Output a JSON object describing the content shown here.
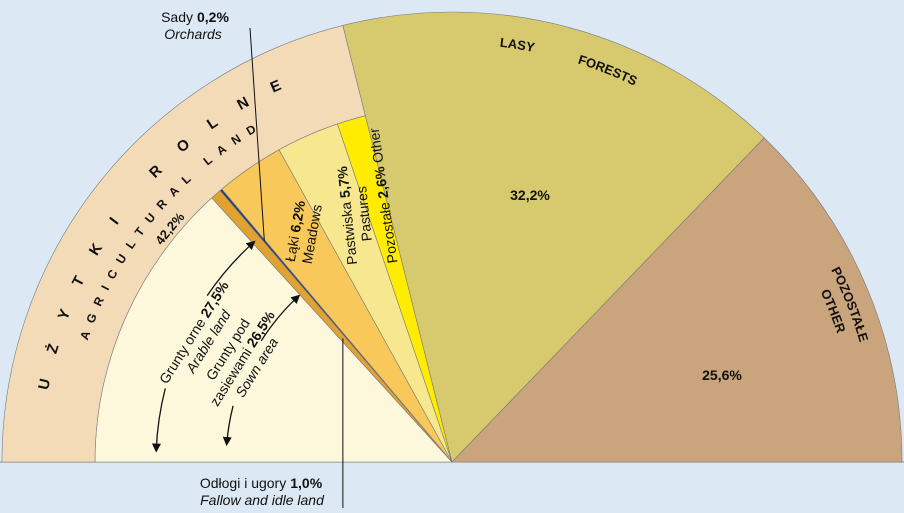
{
  "chart_data": {
    "type": "semi-pie",
    "segments": [
      {
        "name": "UŻYTKI ROLNE",
        "name_en": "AGRICULTURAL LAND",
        "value": 42.2,
        "value_label": "42,2%",
        "color": "#f3dbb8",
        "parts": [
          {
            "name": "Grunty orne",
            "name_en": "Arable land",
            "value": 27.5,
            "value_label": "27,5%",
            "parts": [
              {
                "name": [
                  "Grunty pod",
                  "zasiewami"
                ],
                "name_en": "Sown area",
                "value": 26.5,
                "value_label": "26,5%",
                "color": "#fdf8dc"
              },
              {
                "name": "Odłogi i ugory",
                "name_en": "Fallow and idle land",
                "value": 1.0,
                "value_label": "1,0%",
                "color": "#e3a132"
              }
            ]
          },
          {
            "name": "Sady",
            "name_en": "Orchards",
            "value": 0.2,
            "value_label": "0,2%",
            "color": "#1f3f7a"
          },
          {
            "name": "Łąki",
            "name_en": "Meadows",
            "value": 6.2,
            "value_label": "6,2%",
            "color": "#f8c95a"
          },
          {
            "name": "Pastwiska",
            "name_en": "Pastures",
            "value": 5.7,
            "value_label": "5,7%",
            "color": "#f7e890"
          },
          {
            "name": "Pozostałe",
            "name_en": "Other",
            "value": 2.6,
            "value_label": "2,6%",
            "color": "#ffec00"
          }
        ]
      },
      {
        "name": "LASY",
        "name_en": "FORESTS",
        "value": 32.2,
        "value_label": "32,2%",
        "color": "#d7c96e"
      },
      {
        "name": "POZOSTAŁE",
        "name_en": "OTHER",
        "value": 25.6,
        "value_label": "25,6%",
        "color": "#c9a47c"
      }
    ]
  }
}
